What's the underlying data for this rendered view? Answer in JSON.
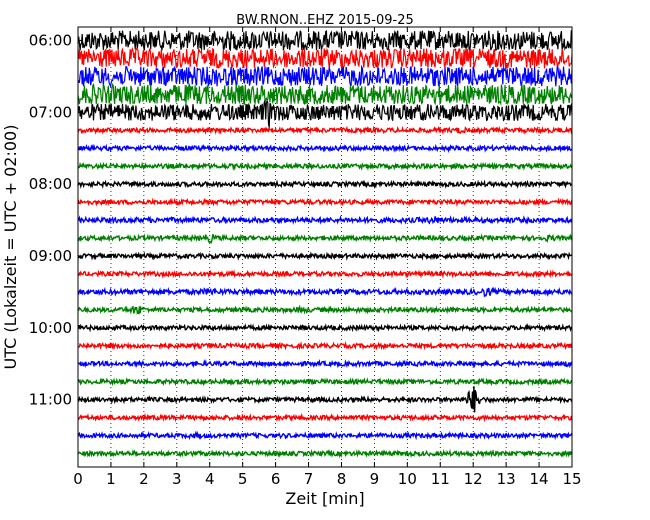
{
  "chart_data": {
    "type": "line",
    "title": "BW.RNON..EHZ 2015-09-25",
    "xlabel": "Zeit  [min]",
    "ylabel": "UTC (Lokalzeit = UTC + 02:00)",
    "xlim": [
      0,
      15
    ],
    "x_ticks": [
      "0",
      "1",
      "2",
      "3",
      "4",
      "5",
      "6",
      "7",
      "8",
      "9",
      "10",
      "11",
      "12",
      "13",
      "14",
      "15"
    ],
    "y_tick_labels": [
      "06:00",
      "07:00",
      "08:00",
      "09:00",
      "10:00",
      "11:00"
    ],
    "grid": "vertical dotted",
    "trace_colors": [
      "#000000",
      "#ff0000",
      "#0000ff",
      "#008000"
    ],
    "rows": [
      {
        "start": "06:00",
        "color": "black",
        "amplitude": 1.0
      },
      {
        "start": "06:15",
        "color": "red",
        "amplitude": 1.0
      },
      {
        "start": "06:30",
        "color": "blue",
        "amplitude": 1.0
      },
      {
        "start": "06:45",
        "color": "green",
        "amplitude": 1.0
      },
      {
        "start": "07:00",
        "color": "black",
        "amplitude": 0.85,
        "events": [
          {
            "t": 5.8,
            "amp": 1.6
          }
        ]
      },
      {
        "start": "07:15",
        "color": "red",
        "amplitude": 0.22,
        "events": [
          {
            "t": 11.6,
            "amp": 0.35
          }
        ]
      },
      {
        "start": "07:30",
        "color": "blue",
        "amplitude": 0.22,
        "events": [
          {
            "t": 3.3,
            "amp": 0.3
          }
        ]
      },
      {
        "start": "07:45",
        "color": "green",
        "amplitude": 0.22
      },
      {
        "start": "08:00",
        "color": "black",
        "amplitude": 0.22
      },
      {
        "start": "08:15",
        "color": "red",
        "amplitude": 0.22
      },
      {
        "start": "08:30",
        "color": "blue",
        "amplitude": 0.25,
        "events": [
          {
            "t": 10.8,
            "amp": 0.45
          }
        ]
      },
      {
        "start": "08:45",
        "color": "green",
        "amplitude": 0.22,
        "events": [
          {
            "t": 4.0,
            "amp": 0.5
          },
          {
            "t": 14.3,
            "amp": 0.35
          }
        ]
      },
      {
        "start": "09:00",
        "color": "black",
        "amplitude": 0.22
      },
      {
        "start": "09:15",
        "color": "red",
        "amplitude": 0.22,
        "events": [
          {
            "t": 9.6,
            "amp": 0.3
          }
        ]
      },
      {
        "start": "09:30",
        "color": "blue",
        "amplitude": 0.25,
        "events": [
          {
            "t": 4.0,
            "amp": 0.4
          },
          {
            "t": 12.4,
            "amp": 0.5
          }
        ]
      },
      {
        "start": "09:45",
        "color": "green",
        "amplitude": 0.22,
        "events": [
          {
            "t": 1.8,
            "amp": 0.55
          },
          {
            "t": 6.8,
            "amp": 0.35
          }
        ]
      },
      {
        "start": "10:00",
        "color": "black",
        "amplitude": 0.22
      },
      {
        "start": "10:15",
        "color": "red",
        "amplitude": 0.22
      },
      {
        "start": "10:30",
        "color": "blue",
        "amplitude": 0.22,
        "events": [
          {
            "t": 14.8,
            "amp": 0.3
          }
        ]
      },
      {
        "start": "10:45",
        "color": "green",
        "amplitude": 0.22
      },
      {
        "start": "11:00",
        "color": "black",
        "amplitude": 0.22,
        "events": [
          {
            "t": 12.0,
            "amp": 1.6
          }
        ]
      },
      {
        "start": "11:15",
        "color": "red",
        "amplitude": 0.22
      },
      {
        "start": "11:30",
        "color": "blue",
        "amplitude": 0.22,
        "events": [
          {
            "t": 3.6,
            "amp": 0.3
          }
        ]
      },
      {
        "start": "11:45",
        "color": "green",
        "amplitude": 0.22
      }
    ]
  }
}
